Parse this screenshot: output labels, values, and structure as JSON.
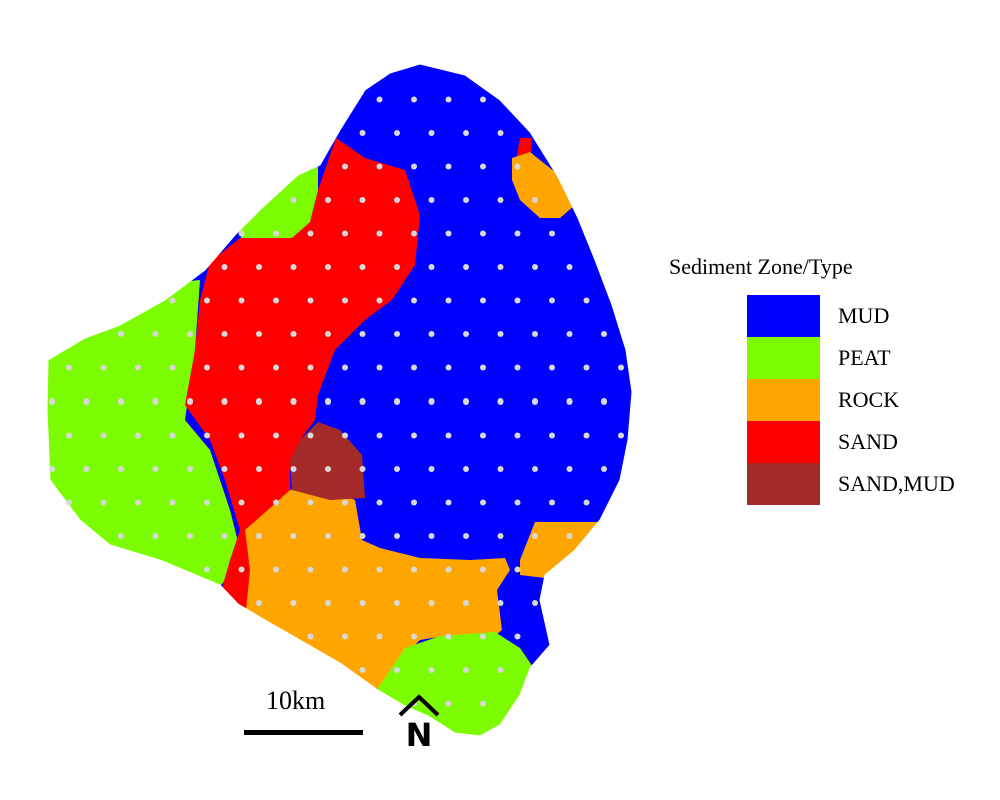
{
  "legend": {
    "title": "Sediment Zone/Type",
    "items": [
      {
        "label": "MUD",
        "color": "#0000FF"
      },
      {
        "label": "PEAT",
        "color": "#7CFC00"
      },
      {
        "label": "ROCK",
        "color": "#FFA500"
      },
      {
        "label": "SAND",
        "color": "#FF0000"
      },
      {
        "label": "SAND,MUD",
        "color": "#A52A2A"
      }
    ]
  },
  "scale_bar": {
    "label": "10km"
  },
  "north_arrow": {
    "label": "N"
  },
  "sample_point_color": "#D8D8D8"
}
